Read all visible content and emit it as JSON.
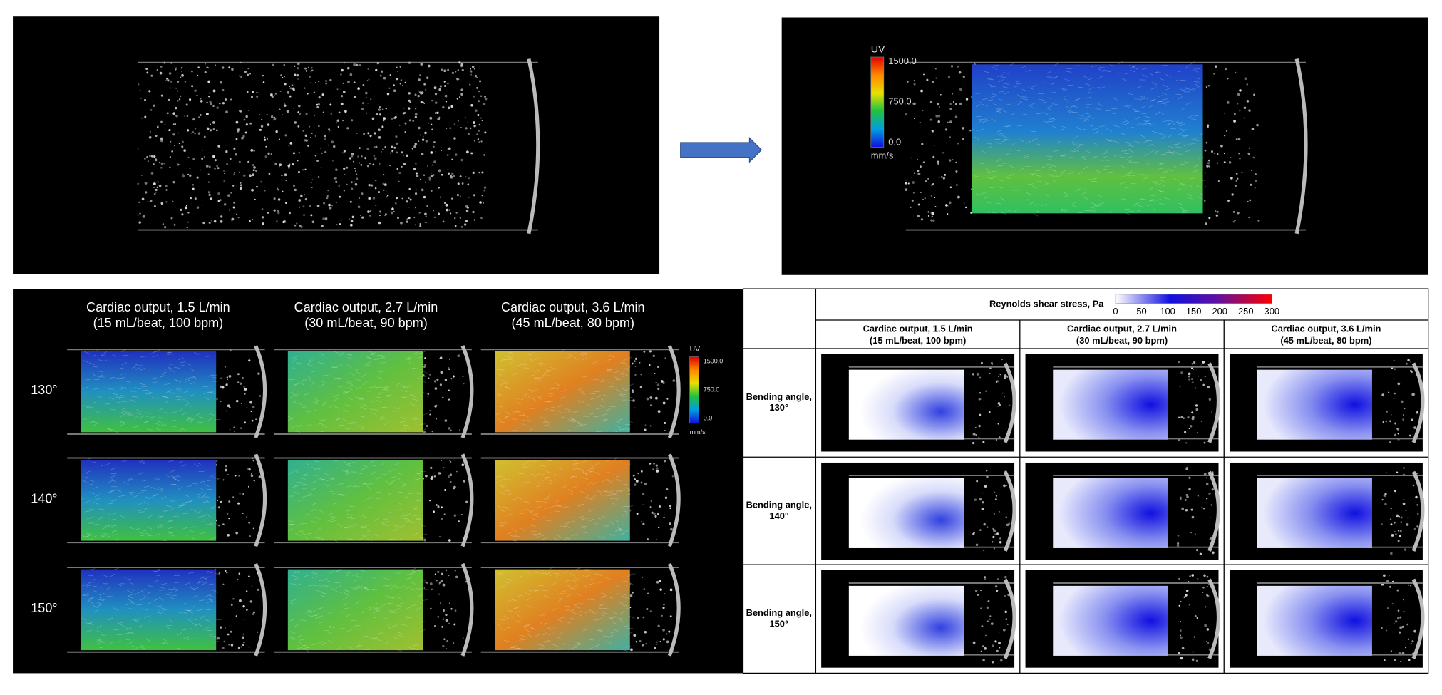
{
  "top": {
    "colorbar": {
      "title": "UV",
      "ticks": [
        "1500.0",
        "750.0",
        "0.0"
      ],
      "unit": "mm/s"
    }
  },
  "left_grid": {
    "columns": [
      {
        "line1": "Cardiac output, 1.5 L/min",
        "line2": "(15 mL/beat, 100 bpm)"
      },
      {
        "line1": "Cardiac output, 2.7 L/min",
        "line2": "(30 mL/beat, 90 bpm)"
      },
      {
        "line1": "Cardiac output, 3.6 L/min",
        "line2": "(45 mL/beat, 80 bpm)"
      }
    ],
    "rows": [
      "130°",
      "140°",
      "150°"
    ],
    "colorbar": {
      "title": "UV",
      "ticks": [
        "1500.0",
        "750.0",
        "0.0"
      ],
      "unit": "mm/s"
    }
  },
  "table": {
    "legend_title": "Reynolds shear stress, Pa",
    "legend_ticks": [
      0,
      50,
      100,
      150,
      200,
      250,
      300
    ],
    "columns": [
      {
        "line1": "Cardiac output, 1.5 L/min",
        "line2": "(15 mL/beat, 100 bpm)"
      },
      {
        "line1": "Cardiac output, 2.7 L/min",
        "line2": "(30 mL/beat, 90 bpm)"
      },
      {
        "line1": "Cardiac output, 3.6 L/min",
        "line2": "(45 mL/beat, 80 bpm)"
      }
    ],
    "rows": [
      {
        "line1": "Bending angle,",
        "line2": "130°"
      },
      {
        "line1": "Bending angle,",
        "line2": "140°"
      },
      {
        "line1": "Bending angle,",
        "line2": "150°"
      }
    ]
  }
}
